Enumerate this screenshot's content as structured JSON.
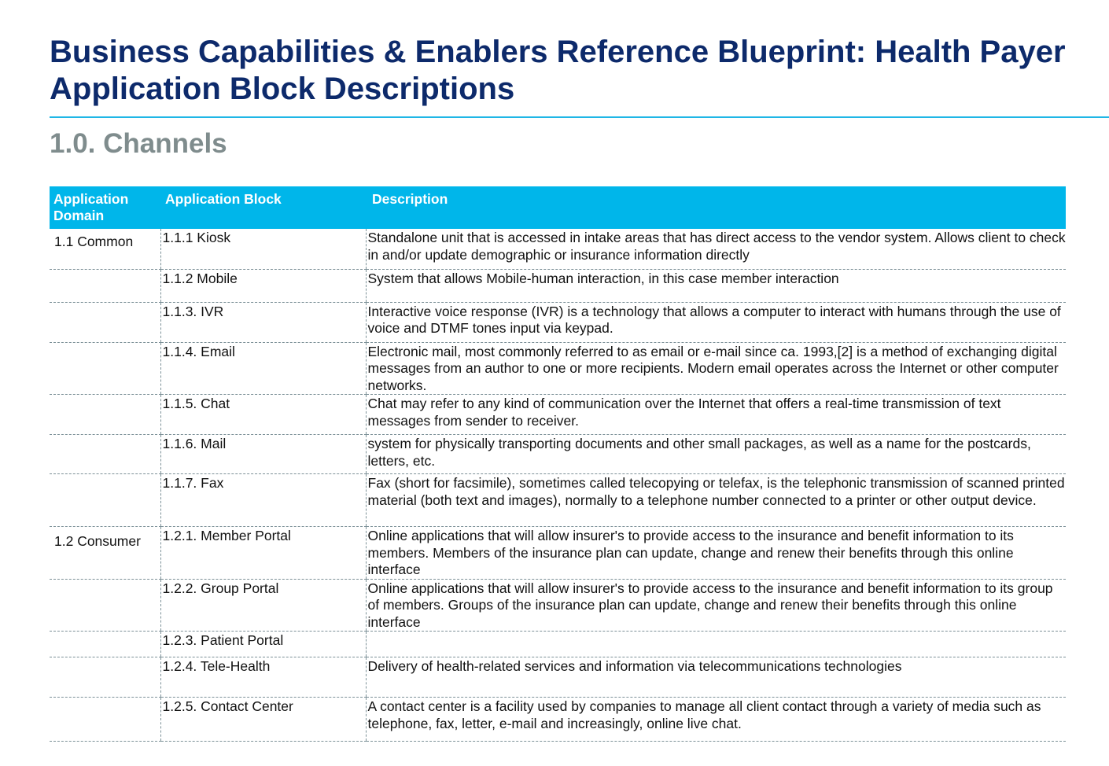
{
  "header": {
    "title": "Business Capabilities & Enablers Reference Blueprint: Health Payer Application Block Descriptions",
    "section": "1.0. Channels"
  },
  "table": {
    "columns": [
      "Application Domain",
      "Application Block",
      "Description"
    ],
    "rows": [
      {
        "domain": "1.1 Common",
        "block": "1.1.1 Kiosk",
        "description": "Standalone unit that is accessed in intake areas that has direct access to the vendor system. Allows client to check in and/or update demographic or insurance information directly"
      },
      {
        "domain": "",
        "block": "1.1.2 Mobile",
        "description": "System that allows Mobile-human interaction, in this case member interaction"
      },
      {
        "domain": "",
        "block": "1.1.3. IVR",
        "description": "Interactive voice response (IVR) is a technology that allows a computer to interact with humans through the use of voice and DTMF tones input via keypad."
      },
      {
        "domain": "",
        "block": "1.1.4. Email",
        "description": "Electronic mail, most commonly referred to as email or e-mail since ca. 1993,[2] is a method of exchanging digital messages from an author to one or more recipients. Modern email operates across the Internet or other computer networks."
      },
      {
        "domain": "",
        "block": "1.1.5. Chat",
        "description": "Chat may refer to any kind of communication over the Internet that offers a real-time transmission of text messages from sender to receiver."
      },
      {
        "domain": "",
        "block": "1.1.6. Mail",
        "description": "system for physically transporting documents and other small packages, as well as a name for the postcards, letters, etc."
      },
      {
        "domain": "",
        "block": "1.1.7. Fax",
        "description": "Fax (short for facsimile), sometimes called telecopying or telefax, is the telephonic transmission of scanned printed material (both text and images), normally to a telephone number connected to a printer or other output device."
      },
      {
        "domain": "1.2 Consumer",
        "block": "1.2.1. Member Portal",
        "description": "Online applications that will allow insurer's to provide access to the insurance and benefit information to its members. Members of the insurance plan can update, change and renew their benefits through this online interface"
      },
      {
        "domain": "",
        "block": "1.2.2. Group Portal",
        "description": "Online applications that will allow insurer's to provide access to the insurance and benefit information to its group of members. Groups of the insurance plan can update, change and renew their benefits through this online interface"
      },
      {
        "domain": "",
        "block": "1.2.3. Patient Portal",
        "description": ""
      },
      {
        "domain": "",
        "block": "1.2.4. Tele-Health",
        "description": "Delivery of health-related services and information via telecommunications technologies"
      },
      {
        "domain": "",
        "block": "1.2.5. Contact Center",
        "description": "A contact center is a facility used by companies to manage all client contact through a variety of media such as telephone, fax, letter, e-mail and increasingly, online live chat."
      }
    ]
  }
}
